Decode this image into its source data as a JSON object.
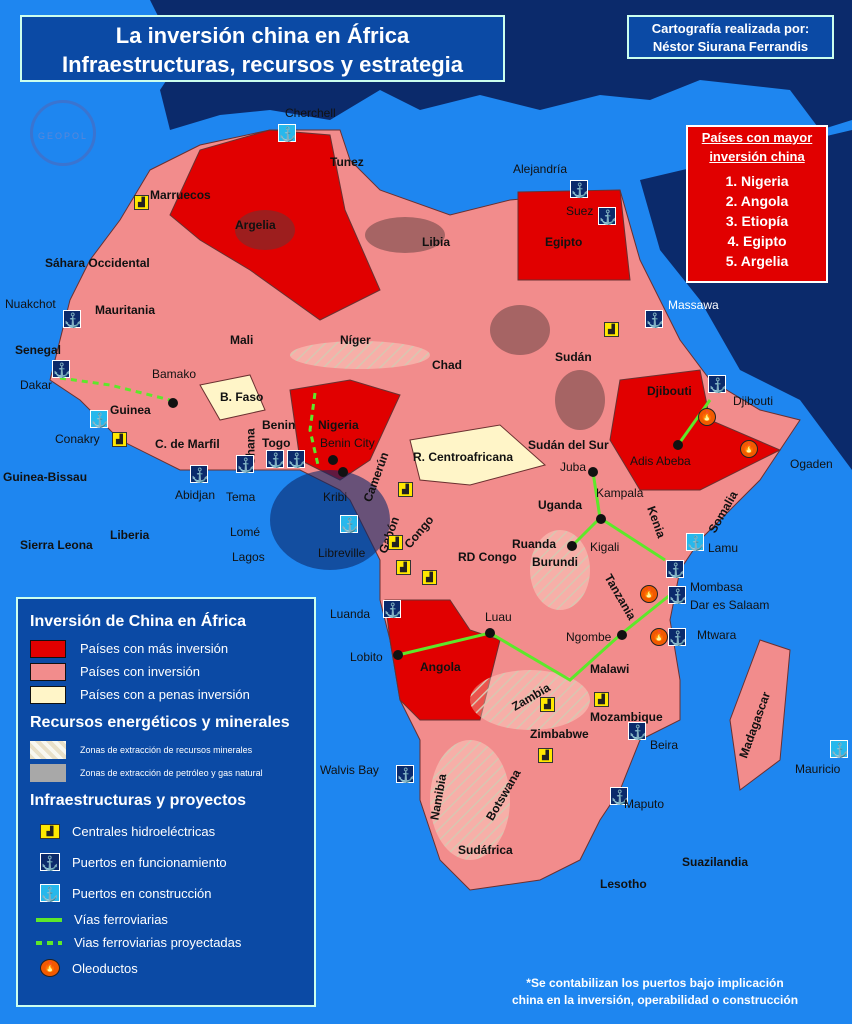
{
  "title": {
    "line1": "La inversión china en África",
    "line2": "Infraestructuras, recursos y estrategia"
  },
  "credit": {
    "line1": "Cartografía realizada por:",
    "line2": "Néstor Siurana Ferrandis"
  },
  "logo": "GEOPOL",
  "ranking": {
    "heading1": "Países con mayor",
    "heading2": "inversión china",
    "items": [
      "1. Nigeria",
      "2. Angola",
      "3. Etiopía",
      "4. Egipto",
      "5. Argelia"
    ]
  },
  "countries": [
    "Marruecos",
    "Argelia",
    "Tunez",
    "Libia",
    "Egipto",
    "Sáhara Occidental",
    "Mauritania",
    "Mali",
    "Níger",
    "Chad",
    "Sudán",
    "Senegal",
    "Guinea",
    "B. Faso",
    "Benin",
    "Togo",
    "Ghana",
    "C. de Marfil",
    "Nigeria",
    "Camerún",
    "R. Centroafricana",
    "Sudán del Sur",
    "Djibouti",
    "Somalia",
    "Ogaden",
    "Uganda",
    "Kenia",
    "Gabón",
    "Congo",
    "RD Congo",
    "Ruanda",
    "Burundi",
    "Tanzania",
    "Angola",
    "Zambia",
    "Malawi",
    "Mozambique",
    "Zimbabwe",
    "Namibia",
    "Botswana",
    "Sudáfrica",
    "Madagascar",
    "Guinea-Bissau",
    "Sierra Leona",
    "Liberia",
    "Suazilandia",
    "Lesotho"
  ],
  "cities": [
    "Bamako",
    "Benin City",
    "Kribi",
    "Juba",
    "Kampala",
    "Kigali",
    "Adis Abeba",
    "Luau",
    "Lobito",
    "Ngombe",
    "Dar es Salaam",
    "Mtwara"
  ],
  "ports": {
    "cherchell": "Cherchell",
    "alejandria": "Alejandría",
    "suez": "Suez",
    "massawa": "Massawa",
    "djibouti": "Djibouti",
    "nuakchot": "Nuakchot",
    "dakar": "Dakar",
    "conakry": "Conakry",
    "abidjan": "Abidjan",
    "tema": "Tema",
    "lome": "Lomé",
    "lagos": "Lagos",
    "libreville": "Libreville",
    "lamu": "Lamu",
    "mombasa": "Mombasa",
    "luanda": "Luanda",
    "beira": "Beira",
    "walvis": "Walvis Bay",
    "maputo": "Maputo",
    "mauricio": "Mauricio"
  },
  "legend": {
    "title": "Inversión de China en África",
    "investment": [
      "Países con más inversión",
      "Países con inversión",
      "Países con a penas inversión"
    ],
    "resources_title": "Recursos energéticos y minerales",
    "resources": [
      "Zonas de extracción de recursos minerales",
      "Zonas de extracción de petróleo y gas natural"
    ],
    "infra_title": "Infraestructuras y proyectos",
    "infra": [
      "Centrales hidroeléctricas",
      "Puertos en funcionamiento",
      "Puertos en construcción",
      "Vías ferroviarias",
      "Vias ferroviarias proyectadas",
      "Oleoductos"
    ]
  },
  "colors": {
    "sea": "#1e86f0",
    "land_other": "#0b2a6b",
    "most": "#e10000",
    "invest": "#f28c8c",
    "little": "#fff5c8",
    "rail": "#5ee82a"
  },
  "note": {
    "line1": "*Se contabilizan los puertos bajo implicación",
    "line2": "china en la inversión, operabilidad o construcción"
  }
}
